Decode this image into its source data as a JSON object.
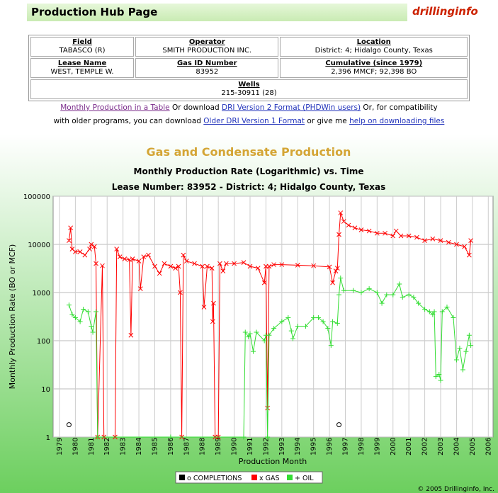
{
  "header": {
    "title": "Production Hub Page",
    "logo": "drillinginfo"
  },
  "table": {
    "rows": [
      [
        {
          "label": "Field",
          "value": "TABASCO (R)"
        },
        {
          "label": "Operator",
          "value": "SMITH PRODUCTION INC."
        },
        {
          "label": "Location",
          "value": "District: 4; Hidalgo County, Texas"
        }
      ],
      [
        {
          "label": "Lease Name",
          "value": "WEST, TEMPLE W."
        },
        {
          "label": "Gas ID Number",
          "value": "83952"
        },
        {
          "label": "Cumulative (since 1979)",
          "value": "2,396 MMCF; 92,398 BO"
        }
      ],
      [
        {
          "label": "Wells",
          "value": "215-30911 (28)"
        }
      ]
    ]
  },
  "links": [
    "Monthly Production in a Table",
    " Or download ",
    "DRI Version 2 Format (PHDWin users)",
    " Or, for compatibility",
    "with older programs, you can download ",
    "Older DRI Version 1 Format",
    " or give me ",
    "help on downloading files"
  ],
  "chart_data": {
    "type": "line",
    "title": "Gas and Condensate Production",
    "subtitle": "Monthly Production Rate (Logarithmic) vs. Time",
    "subtitle2": "Lease Number:  83952 - District: 4;  Hidalgo County, Texas",
    "x_label": "Production Month",
    "y_label": "Monthly Production Rate (BO or MCF)",
    "log_y": true,
    "grid": true,
    "xlim": [
      1978.6,
      2006.3
    ],
    "ylim": [
      1,
      100000
    ],
    "yticks": [
      1,
      10,
      100,
      1000,
      10000,
      100000
    ],
    "xticks": [
      1979,
      1980,
      1981,
      1982,
      1983,
      1984,
      1985,
      1986,
      1987,
      1988,
      1989,
      1990,
      1991,
      1992,
      1993,
      1994,
      1995,
      1996,
      1997,
      1998,
      1999,
      2000,
      2001,
      2002,
      2003,
      2004,
      2005,
      2006
    ],
    "series": [
      {
        "name": "o COMPLETIONS",
        "color": "#000000",
        "marker": "o",
        "line": false,
        "x": [
          1979.6,
          1996.6
        ],
        "values": [
          1.8,
          1.8
        ]
      },
      {
        "name": "x GAS",
        "color": "#ff0000",
        "marker": "x",
        "line": true,
        "x": [
          1979.6,
          1979.7,
          1979.8,
          1980.0,
          1980.3,
          1980.6,
          1980.9,
          1981.0,
          1981.2,
          1981.3,
          1981.4,
          1981.7,
          1981.8,
          1982.5,
          1982.6,
          1982.8,
          1983.1,
          1983.4,
          1983.5,
          1983.6,
          1984.0,
          1984.1,
          1984.3,
          1984.6,
          1985.0,
          1985.3,
          1985.6,
          1986.0,
          1986.3,
          1986.5,
          1986.6,
          1986.7,
          1986.8,
          1987.0,
          1987.5,
          1988.0,
          1988.1,
          1988.3,
          1988.6,
          1988.65,
          1988.7,
          1988.8,
          1989.0,
          1989.1,
          1989.3,
          1989.5,
          1990.0,
          1990.6,
          1991.0,
          1991.5,
          1991.9,
          1992.0,
          1992.1,
          1992.2,
          1992.5,
          1993.0,
          1994.0,
          1995.0,
          1996.0,
          1996.2,
          1996.4,
          1996.5,
          1996.6,
          1996.7,
          1996.9,
          1997.2,
          1997.6,
          1998.0,
          1998.5,
          1999.0,
          1999.5,
          2000.0,
          2000.2,
          2000.5,
          2001.0,
          2001.5,
          2002.0,
          2002.5,
          2003.0,
          2003.5,
          2004.0,
          2004.5,
          2004.8,
          2004.9
        ],
        "values": [
          12000,
          22000,
          8000,
          7000,
          7000,
          6000,
          8000,
          10000,
          9000,
          4000,
          1,
          3600,
          1,
          1,
          8000,
          5500,
          5000,
          4800,
          130,
          5000,
          4500,
          1200,
          5500,
          6000,
          3500,
          2500,
          4000,
          3500,
          3200,
          3500,
          1000,
          1,
          6000,
          4500,
          4000,
          3500,
          500,
          3500,
          3200,
          250,
          600,
          1,
          1,
          4000,
          2800,
          4000,
          4000,
          4200,
          3500,
          3200,
          1600,
          3500,
          4,
          3500,
          3800,
          3800,
          3700,
          3600,
          3400,
          1600,
          2800,
          3200,
          16000,
          45000,
          30000,
          25000,
          22000,
          20000,
          19000,
          17000,
          17000,
          15000,
          19000,
          15000,
          15000,
          14000,
          12000,
          13000,
          12000,
          11000,
          10000,
          9000,
          6000,
          12000
        ]
      },
      {
        "name": "+ OIL",
        "color": "#33dd33",
        "marker": "+",
        "line": true,
        "x": [
          1979.6,
          1979.8,
          1980.0,
          1980.3,
          1980.5,
          1980.8,
          1981.0,
          1981.1,
          1981.3,
          1981.4,
          1986.0,
          1990.6,
          1990.7,
          1990.9,
          1991.0,
          1991.2,
          1991.4,
          1991.9,
          1992.0,
          1992.1,
          1992.2,
          1992.5,
          1993.0,
          1993.4,
          1993.6,
          1993.7,
          1994.0,
          1994.5,
          1995.0,
          1995.3,
          1995.6,
          1995.9,
          1996.1,
          1996.2,
          1996.5,
          1996.6,
          1996.7,
          1996.9,
          1997.5,
          1998.0,
          1998.5,
          1999.0,
          1999.3,
          1999.6,
          2000.0,
          2000.4,
          2000.6,
          2001.0,
          2001.3,
          2001.6,
          2002.0,
          2002.3,
          2002.5,
          2002.6,
          2002.7,
          2002.9,
          2003.0,
          2003.1,
          2003.4,
          2003.8,
          2004.0,
          2004.2,
          2004.4,
          2004.6,
          2004.8,
          2004.9
        ],
        "values": [
          550,
          350,
          300,
          250,
          450,
          400,
          200,
          150,
          400,
          1,
          1,
          1,
          150,
          120,
          140,
          60,
          150,
          100,
          130,
          1,
          130,
          180,
          250,
          300,
          160,
          110,
          200,
          200,
          300,
          300,
          250,
          180,
          80,
          250,
          230,
          900,
          2000,
          1100,
          1100,
          1000,
          1200,
          1000,
          600,
          900,
          900,
          1500,
          800,
          900,
          800,
          600,
          450,
          400,
          350,
          400,
          18,
          20,
          15,
          400,
          500,
          300,
          40,
          70,
          25,
          60,
          130,
          80
        ]
      }
    ],
    "copyright": "© 2005 DrillingInfo, Inc."
  }
}
